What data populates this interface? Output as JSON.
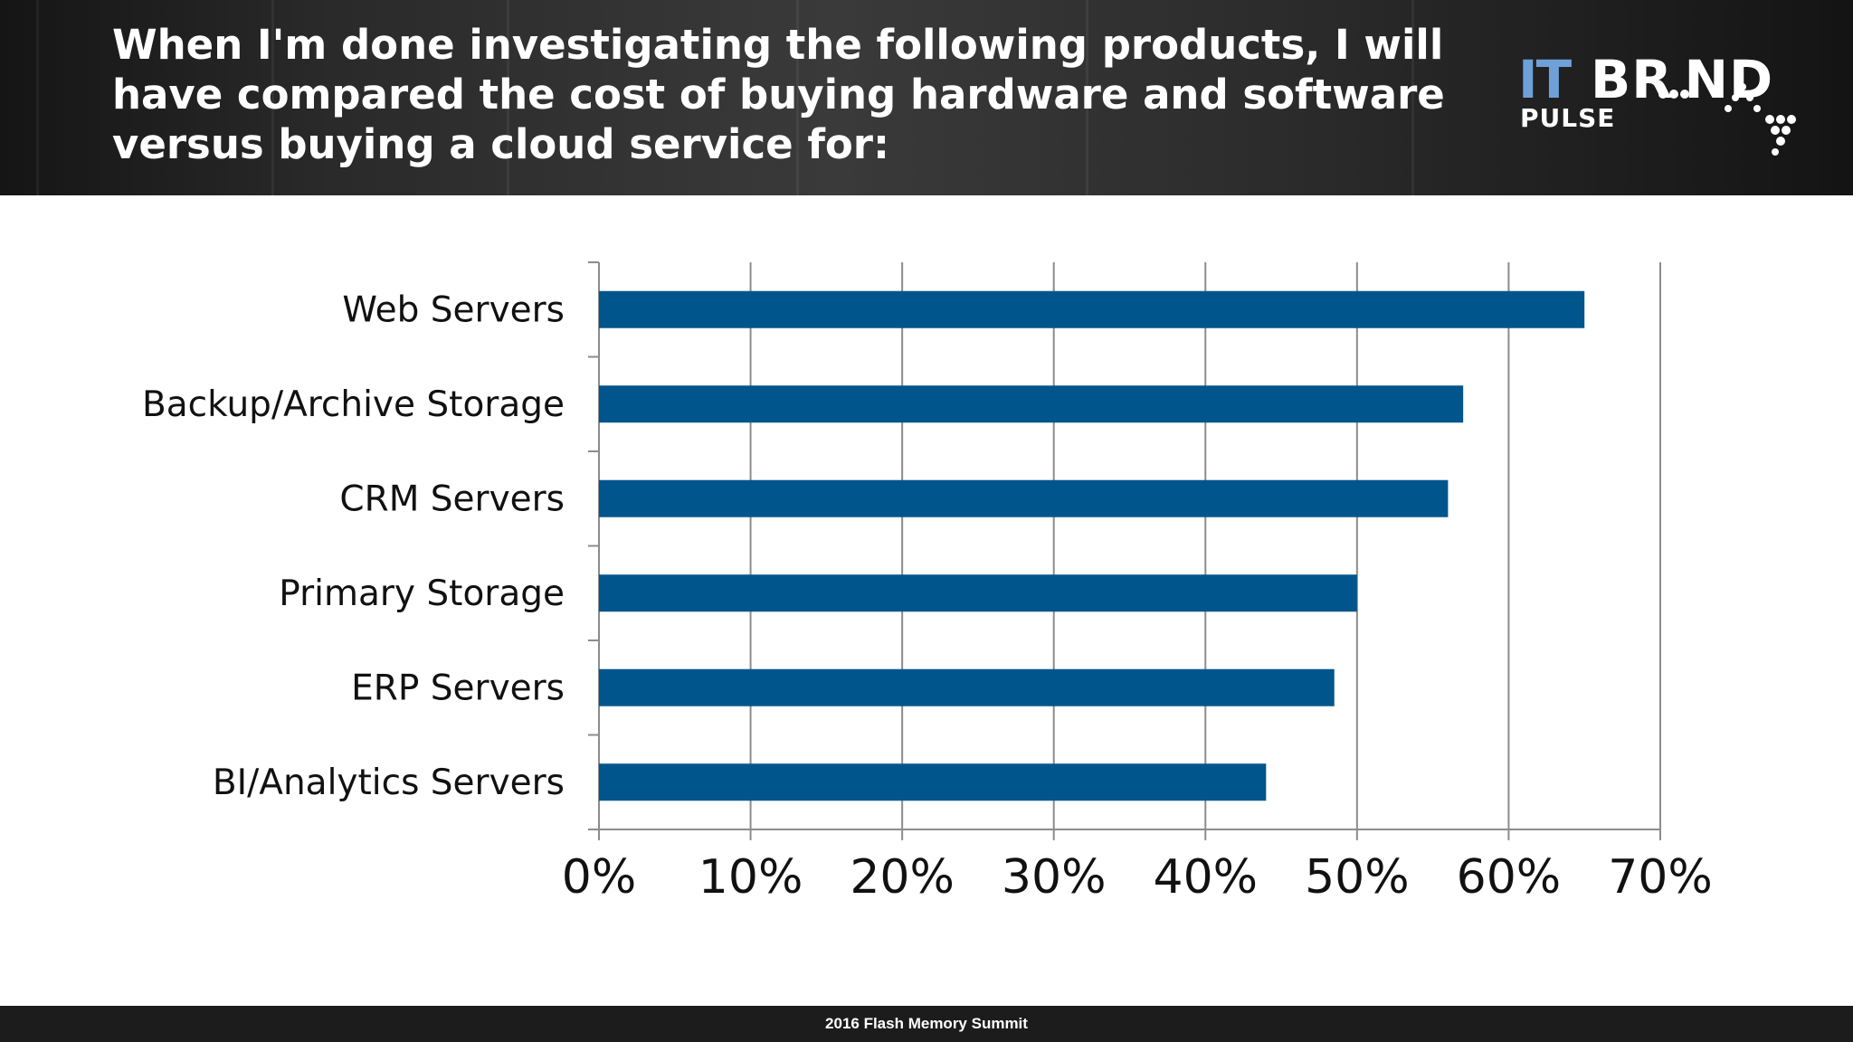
{
  "header": {
    "title": "When I'm done investigating the following products, I will have compared the cost of buying hardware and software versus buying a cloud service for:"
  },
  "logo": {
    "it": "IT",
    "brand": "BR ND",
    "pulse": "PULSE"
  },
  "colors": {
    "bar": "#00558c",
    "grid": "#8c8c8c",
    "header_bg": "#2b2b2b",
    "logo_it": "#6fa0d8"
  },
  "chart_data": {
    "type": "bar",
    "orientation": "horizontal",
    "title": "",
    "xlabel": "",
    "ylabel": "",
    "categories": [
      "Web Servers",
      "Backup/Archive Storage",
      "CRM Servers",
      "Primary Storage",
      "ERP Servers",
      "BI/Analytics Servers"
    ],
    "values": [
      65,
      57,
      56,
      50,
      48.5,
      44
    ],
    "xlim": [
      0,
      70
    ],
    "ticks": [
      "0%",
      "10%",
      "20%",
      "30%",
      "40%",
      "50%",
      "60%",
      "70%"
    ],
    "grid": true,
    "legend": "none"
  },
  "footer": {
    "text": "2016 Flash Memory Summit"
  }
}
